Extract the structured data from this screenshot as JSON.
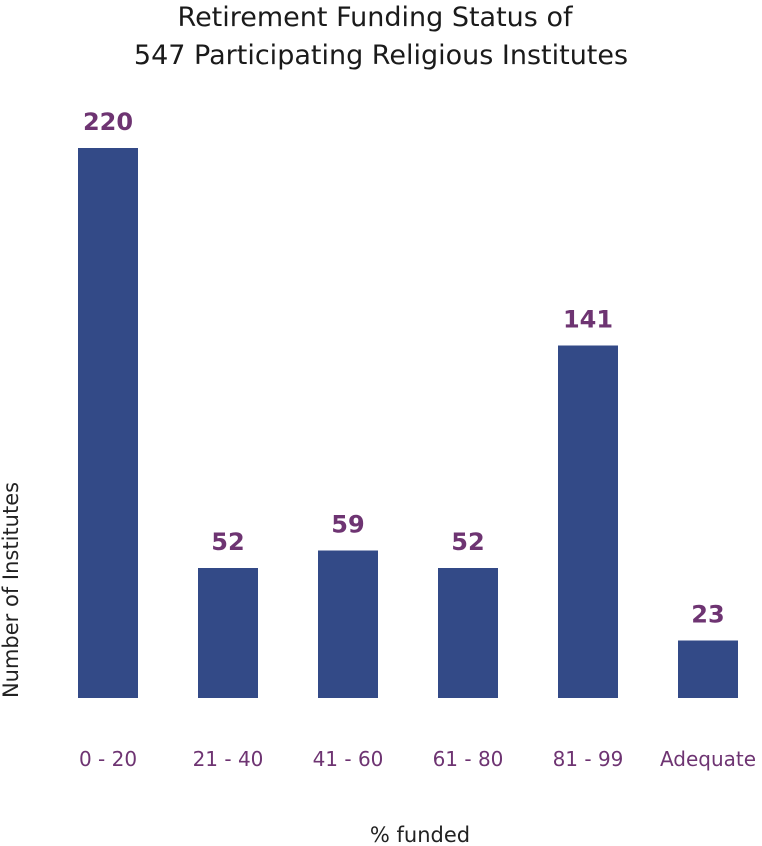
{
  "chart_data": {
    "type": "bar",
    "title": [
      "Retirement Funding Status of",
      "547 Participating Religious Institutes"
    ],
    "xlabel": "% funded",
    "ylabel": "Number of Institutes",
    "categories": [
      "0 - 20",
      "21 - 40",
      "41 - 60",
      "61 - 80",
      "81 - 99",
      "Adequate"
    ],
    "values": [
      220,
      52,
      59,
      52,
      141,
      23
    ],
    "value_labels": [
      "220",
      "52",
      "59",
      "52",
      "141",
      "23"
    ],
    "ylim": [
      0,
      220
    ],
    "grid": false,
    "legend": "none",
    "colors": {
      "bar": "#334a87",
      "value_label": "#6e3472",
      "tick_label": "#6e3472"
    }
  }
}
